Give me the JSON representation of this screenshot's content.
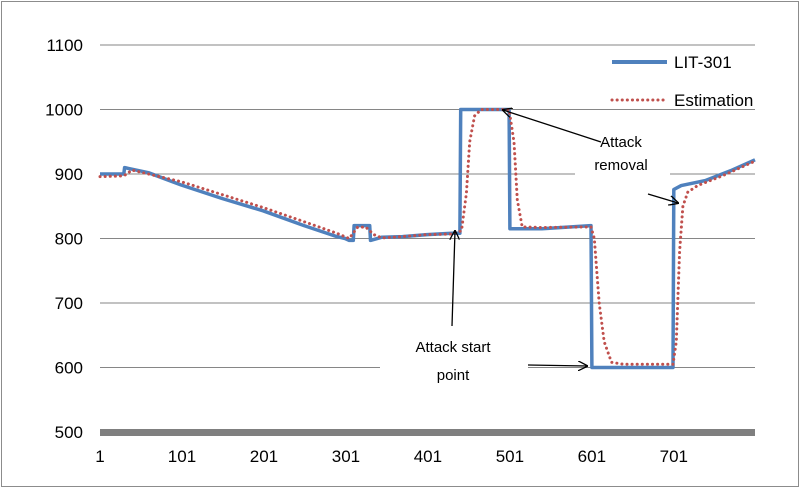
{
  "chart_data": {
    "type": "line",
    "title": "",
    "xlabel": "",
    "ylabel": "",
    "ylim": [
      500,
      1100
    ],
    "xlim": [
      1,
      800
    ],
    "x_ticks": [
      {
        "value": 1,
        "label": "1"
      },
      {
        "value": 101,
        "label": "101"
      },
      {
        "value": 201,
        "label": "201"
      },
      {
        "value": 301,
        "label": "301"
      },
      {
        "value": 401,
        "label": "401"
      },
      {
        "value": 501,
        "label": "501"
      },
      {
        "value": 601,
        "label": "601"
      },
      {
        "value": 701,
        "label": "701"
      }
    ],
    "y_ticks": [
      {
        "value": 500,
        "label": "500"
      },
      {
        "value": 600,
        "label": "600"
      },
      {
        "value": 700,
        "label": "700"
      },
      {
        "value": 800,
        "label": "800"
      },
      {
        "value": 900,
        "label": "900"
      },
      {
        "value": 1000,
        "label": "1000"
      },
      {
        "value": 1100,
        "label": "1100"
      }
    ],
    "grid": true,
    "legend_position": "top-right",
    "series": [
      {
        "name": "LIT-301",
        "color": "#4f81bd",
        "style": "solid",
        "points": [
          [
            1,
            900
          ],
          [
            30,
            900
          ],
          [
            31,
            910
          ],
          [
            60,
            902
          ],
          [
            100,
            883
          ],
          [
            150,
            862
          ],
          [
            200,
            843
          ],
          [
            250,
            820
          ],
          [
            290,
            803
          ],
          [
            300,
            800
          ],
          [
            305,
            797
          ],
          [
            310,
            797
          ],
          [
            311,
            820
          ],
          [
            330,
            820
          ],
          [
            331,
            797
          ],
          [
            345,
            802
          ],
          [
            370,
            803
          ],
          [
            400,
            806
          ],
          [
            430,
            808
          ],
          [
            440,
            808
          ],
          [
            441,
            1000
          ],
          [
            500,
            1000
          ],
          [
            501,
            815
          ],
          [
            540,
            815
          ],
          [
            600,
            820
          ],
          [
            601,
            600
          ],
          [
            700,
            600
          ],
          [
            701,
            876
          ],
          [
            710,
            882
          ],
          [
            740,
            890
          ],
          [
            770,
            905
          ],
          [
            800,
            922
          ]
        ]
      },
      {
        "name": "Estimation",
        "color": "#c0504d",
        "style": "dotted",
        "points": [
          [
            1,
            896
          ],
          [
            30,
            897
          ],
          [
            40,
            906
          ],
          [
            60,
            900
          ],
          [
            100,
            888
          ],
          [
            150,
            868
          ],
          [
            200,
            848
          ],
          [
            250,
            826
          ],
          [
            290,
            808
          ],
          [
            305,
            800
          ],
          [
            315,
            817
          ],
          [
            325,
            818
          ],
          [
            335,
            806
          ],
          [
            345,
            801
          ],
          [
            370,
            803
          ],
          [
            400,
            806
          ],
          [
            430,
            807
          ],
          [
            442,
            812
          ],
          [
            448,
            870
          ],
          [
            452,
            950
          ],
          [
            458,
            990
          ],
          [
            466,
            1000
          ],
          [
            500,
            1000
          ],
          [
            506,
            950
          ],
          [
            510,
            860
          ],
          [
            516,
            818
          ],
          [
            540,
            817
          ],
          [
            600,
            818
          ],
          [
            604,
            800
          ],
          [
            610,
            700
          ],
          [
            616,
            640
          ],
          [
            625,
            608
          ],
          [
            640,
            605
          ],
          [
            700,
            605
          ],
          [
            704,
            640
          ],
          [
            708,
            780
          ],
          [
            712,
            850
          ],
          [
            718,
            872
          ],
          [
            730,
            882
          ],
          [
            760,
            897
          ],
          [
            800,
            920
          ]
        ]
      }
    ],
    "annotations": [
      {
        "lines": [
          "Attack",
          "removal"
        ]
      },
      {
        "lines": [
          "Attack start",
          "point"
        ]
      }
    ]
  },
  "colors": {
    "axis_bar": "#7f7f7f",
    "grid": "#868686",
    "frame": "#8c8c8c"
  }
}
